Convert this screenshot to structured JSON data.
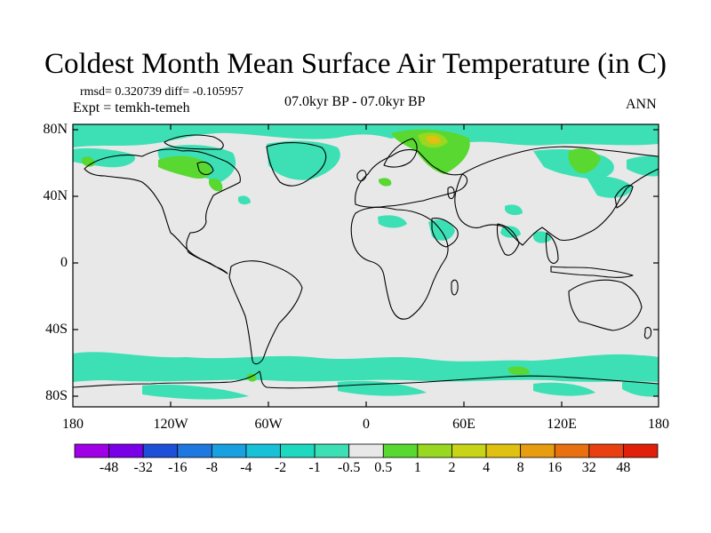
{
  "title": "Coldest Month Mean Surface Air Temperature (in C)",
  "stats": "rmsd= 0.320739 diff= -0.105957",
  "experiment": "Expt = temkh-temeh",
  "period": "07.0kyr BP - 07.0kyr BP",
  "season": "ANN",
  "lat_labels": [
    "80N",
    "40N",
    "0",
    "40S",
    "80S"
  ],
  "lon_labels": [
    "180",
    "120W",
    "60W",
    "0",
    "60E",
    "120E",
    "180"
  ],
  "colorbar": {
    "labels": [
      "-48",
      "-32",
      "-16",
      "-8",
      "-4",
      "-2",
      "-1",
      "-0.5",
      "0.5",
      "1",
      "2",
      "4",
      "8",
      "16",
      "32",
      "48"
    ],
    "colors": [
      "#a000e6",
      "#7a00e8",
      "#1e4fd8",
      "#1e78e0",
      "#18a0e0",
      "#18c0d8",
      "#1ed8c0",
      "#3ce0b4",
      "#e8e8e8",
      "#58d830",
      "#98d820",
      "#c8d418",
      "#e0c010",
      "#e89c10",
      "#e87010",
      "#e84010",
      "#e02008"
    ]
  },
  "map_colors": {
    "background": "#e8e8e8",
    "cool": "#3ce0b4",
    "cool_deep": "#18c0d8",
    "warm": "#58d830",
    "warm_strong": "#98d820",
    "warm_peak": "#e0c010"
  }
}
